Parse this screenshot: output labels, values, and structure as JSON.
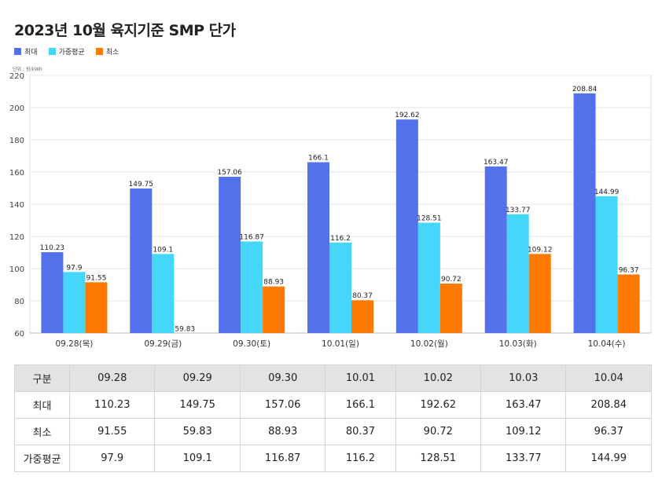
{
  "title": "2023년 10월 육지기준 SMP 단가",
  "unit_label": "단위 : 원/kWh",
  "colors": {
    "max": "#5371EA",
    "avg": "#44D7FA",
    "min": "#FF7A00"
  },
  "chart_data": {
    "type": "bar",
    "categories": [
      "09.28(목)",
      "09.29(금)",
      "09.30(토)",
      "10.01(일)",
      "10.02(월)",
      "10.03(화)",
      "10.04(수)"
    ],
    "series": [
      {
        "name": "최대",
        "values": [
          110.23,
          149.75,
          157.06,
          166.1,
          192.62,
          163.47,
          208.84
        ]
      },
      {
        "name": "가중평균",
        "values": [
          97.9,
          109.1,
          116.87,
          116.2,
          128.51,
          133.77,
          144.99
        ]
      },
      {
        "name": "최소",
        "values": [
          91.55,
          59.83,
          88.93,
          80.37,
          90.72,
          109.12,
          96.37
        ]
      }
    ],
    "ylim": [
      60,
      220
    ],
    "yticks": [
      60,
      80,
      100,
      120,
      140,
      160,
      180,
      200,
      220
    ],
    "grid": true,
    "legend_position": "top-left",
    "data_labels": true
  },
  "table": {
    "header_label": "구분",
    "columns": [
      "09.28",
      "09.29",
      "09.30",
      "10.01",
      "10.02",
      "10.03",
      "10.04"
    ],
    "rows": [
      {
        "label": "최대",
        "values": [
          "110.23",
          "149.75",
          "157.06",
          "166.1",
          "192.62",
          "163.47",
          "208.84"
        ]
      },
      {
        "label": "최소",
        "values": [
          "91.55",
          "59.83",
          "88.93",
          "80.37",
          "90.72",
          "109.12",
          "96.37"
        ]
      },
      {
        "label": "가중평균",
        "values": [
          "97.9",
          "109.1",
          "116.87",
          "116.2",
          "128.51",
          "133.77",
          "144.99"
        ]
      }
    ]
  }
}
